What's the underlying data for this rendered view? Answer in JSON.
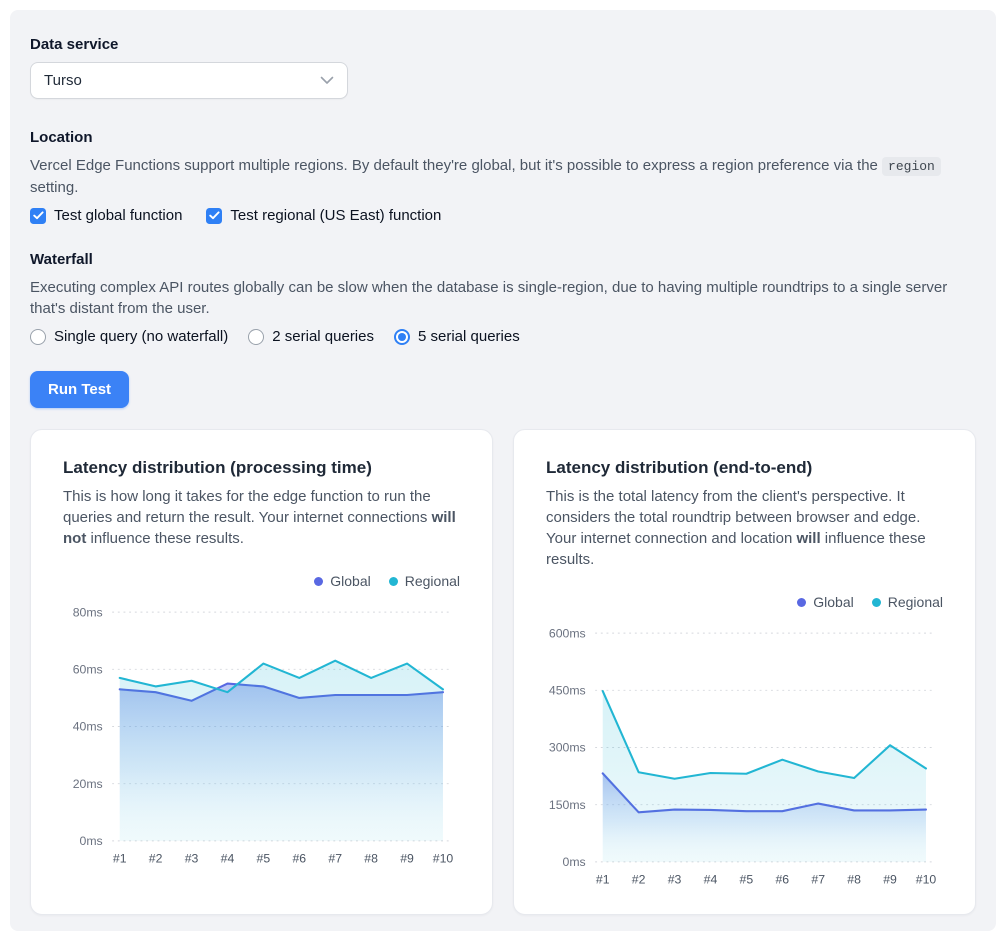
{
  "colors": {
    "panel_bg": "#f2f3f6",
    "accent_blue": "#3b82f6",
    "checkbox_blue": "#2f80f5",
    "global_series": "#5968e2",
    "regional_series": "#22b6d3",
    "grid_line": "#d5d8dd",
    "card_border": "#e7e9ee"
  },
  "form": {
    "data_service": {
      "label": "Data service",
      "selected": "Turso"
    },
    "location": {
      "label": "Location",
      "description_pre": "Vercel Edge Functions support multiple regions. By default they're global, but it's possible to express a region preference via the ",
      "description_code": "region",
      "description_post": " setting.",
      "checkboxes": [
        {
          "label": "Test global function",
          "checked": true
        },
        {
          "label": "Test regional (US East) function",
          "checked": true
        }
      ]
    },
    "waterfall": {
      "label": "Waterfall",
      "description": "Executing complex API routes globally can be slow when the database is single-region, due to having multiple roundtrips to a single server that's distant from the user.",
      "radios": [
        {
          "label": "Single query (no waterfall)",
          "selected": false
        },
        {
          "label": "2 serial queries",
          "selected": false
        },
        {
          "label": "5 serial queries",
          "selected": true
        }
      ]
    },
    "run_button": "Run Test"
  },
  "chart_data": [
    {
      "type": "area",
      "title": "Latency distribution (processing time)",
      "description": {
        "pre": "This is how long it takes for the edge function to run the queries and return the result. Your internet connections ",
        "bold": "will not",
        "post": " influence these results."
      },
      "unit": "ms",
      "xlabel": "",
      "ylabel": "",
      "categories": [
        "#1",
        "#2",
        "#3",
        "#4",
        "#5",
        "#6",
        "#7",
        "#8",
        "#9",
        "#10"
      ],
      "ylim": [
        0,
        80
      ],
      "yticks": [
        0,
        20,
        40,
        60,
        80
      ],
      "grid": "dashed-horizontal",
      "legend_position": "top-right",
      "series": [
        {
          "name": "Global",
          "color": "#5968e2",
          "values": [
            53,
            52,
            49,
            55,
            54,
            50,
            51,
            51,
            51,
            52
          ]
        },
        {
          "name": "Regional",
          "color": "#22b6d3",
          "values": [
            57,
            54,
            56,
            52,
            62,
            57,
            63,
            57,
            62,
            53
          ]
        }
      ]
    },
    {
      "type": "area",
      "title": "Latency distribution (end-to-end)",
      "description": {
        "pre": "This is the total latency from the client's perspective. It considers the total roundtrip between browser and edge. Your internet connection and location ",
        "bold": "will",
        "post": " influence these results."
      },
      "unit": "ms",
      "xlabel": "",
      "ylabel": "",
      "categories": [
        "#1",
        "#2",
        "#3",
        "#4",
        "#5",
        "#6",
        "#7",
        "#8",
        "#9",
        "#10"
      ],
      "ylim": [
        0,
        600
      ],
      "yticks": [
        0,
        150,
        300,
        450,
        600
      ],
      "grid": "dashed-horizontal",
      "legend_position": "top-right",
      "series": [
        {
          "name": "Global",
          "color": "#5968e2",
          "values": [
            232,
            130,
            137,
            136,
            133,
            133,
            153,
            135,
            135,
            137
          ]
        },
        {
          "name": "Regional",
          "color": "#22b6d3",
          "values": [
            448,
            235,
            218,
            233,
            231,
            268,
            237,
            220,
            306,
            245
          ]
        }
      ]
    }
  ]
}
